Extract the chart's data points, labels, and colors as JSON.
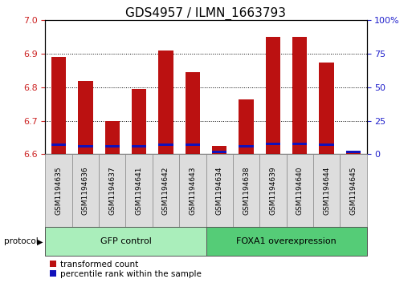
{
  "title": "GDS4957 / ILMN_1663793",
  "samples": [
    "GSM1194635",
    "GSM1194636",
    "GSM1194637",
    "GSM1194641",
    "GSM1194642",
    "GSM1194643",
    "GSM1194634",
    "GSM1194638",
    "GSM1194639",
    "GSM1194640",
    "GSM1194644",
    "GSM1194645"
  ],
  "transformed_counts": [
    6.89,
    6.82,
    6.7,
    6.795,
    6.91,
    6.845,
    6.625,
    6.765,
    6.95,
    6.95,
    6.875,
    6.605
  ],
  "percentile_ranks": [
    6,
    5,
    5,
    5,
    6,
    6,
    1,
    5,
    7,
    7,
    6,
    1
  ],
  "y_min": 6.6,
  "y_max": 7.0,
  "y_ticks": [
    6.6,
    6.7,
    6.8,
    6.9,
    7.0
  ],
  "y2_ticks": [
    0,
    25,
    50,
    75,
    100
  ],
  "percentile_scale_max": 100,
  "bar_color_red": "#BB1111",
  "bar_color_blue": "#1111BB",
  "groups": [
    {
      "label": "GFP control",
      "start": 0,
      "end": 6,
      "color": "#AAEEBB"
    },
    {
      "label": "FOXA1 overexpression",
      "start": 6,
      "end": 12,
      "color": "#55CC77"
    }
  ],
  "protocol_label": "protocol",
  "legend_items": [
    {
      "label": "transformed count",
      "color": "#BB1111"
    },
    {
      "label": "percentile rank within the sample",
      "color": "#1111BB"
    }
  ],
  "bar_width": 0.55,
  "grid_color": "black",
  "background_color": "#FFFFFF",
  "tick_label_color_left": "#CC2222",
  "tick_label_color_right": "#2222CC",
  "title_fontsize": 11,
  "axis_fontsize": 8,
  "sample_fontsize": 6.5,
  "label_fontsize": 8
}
